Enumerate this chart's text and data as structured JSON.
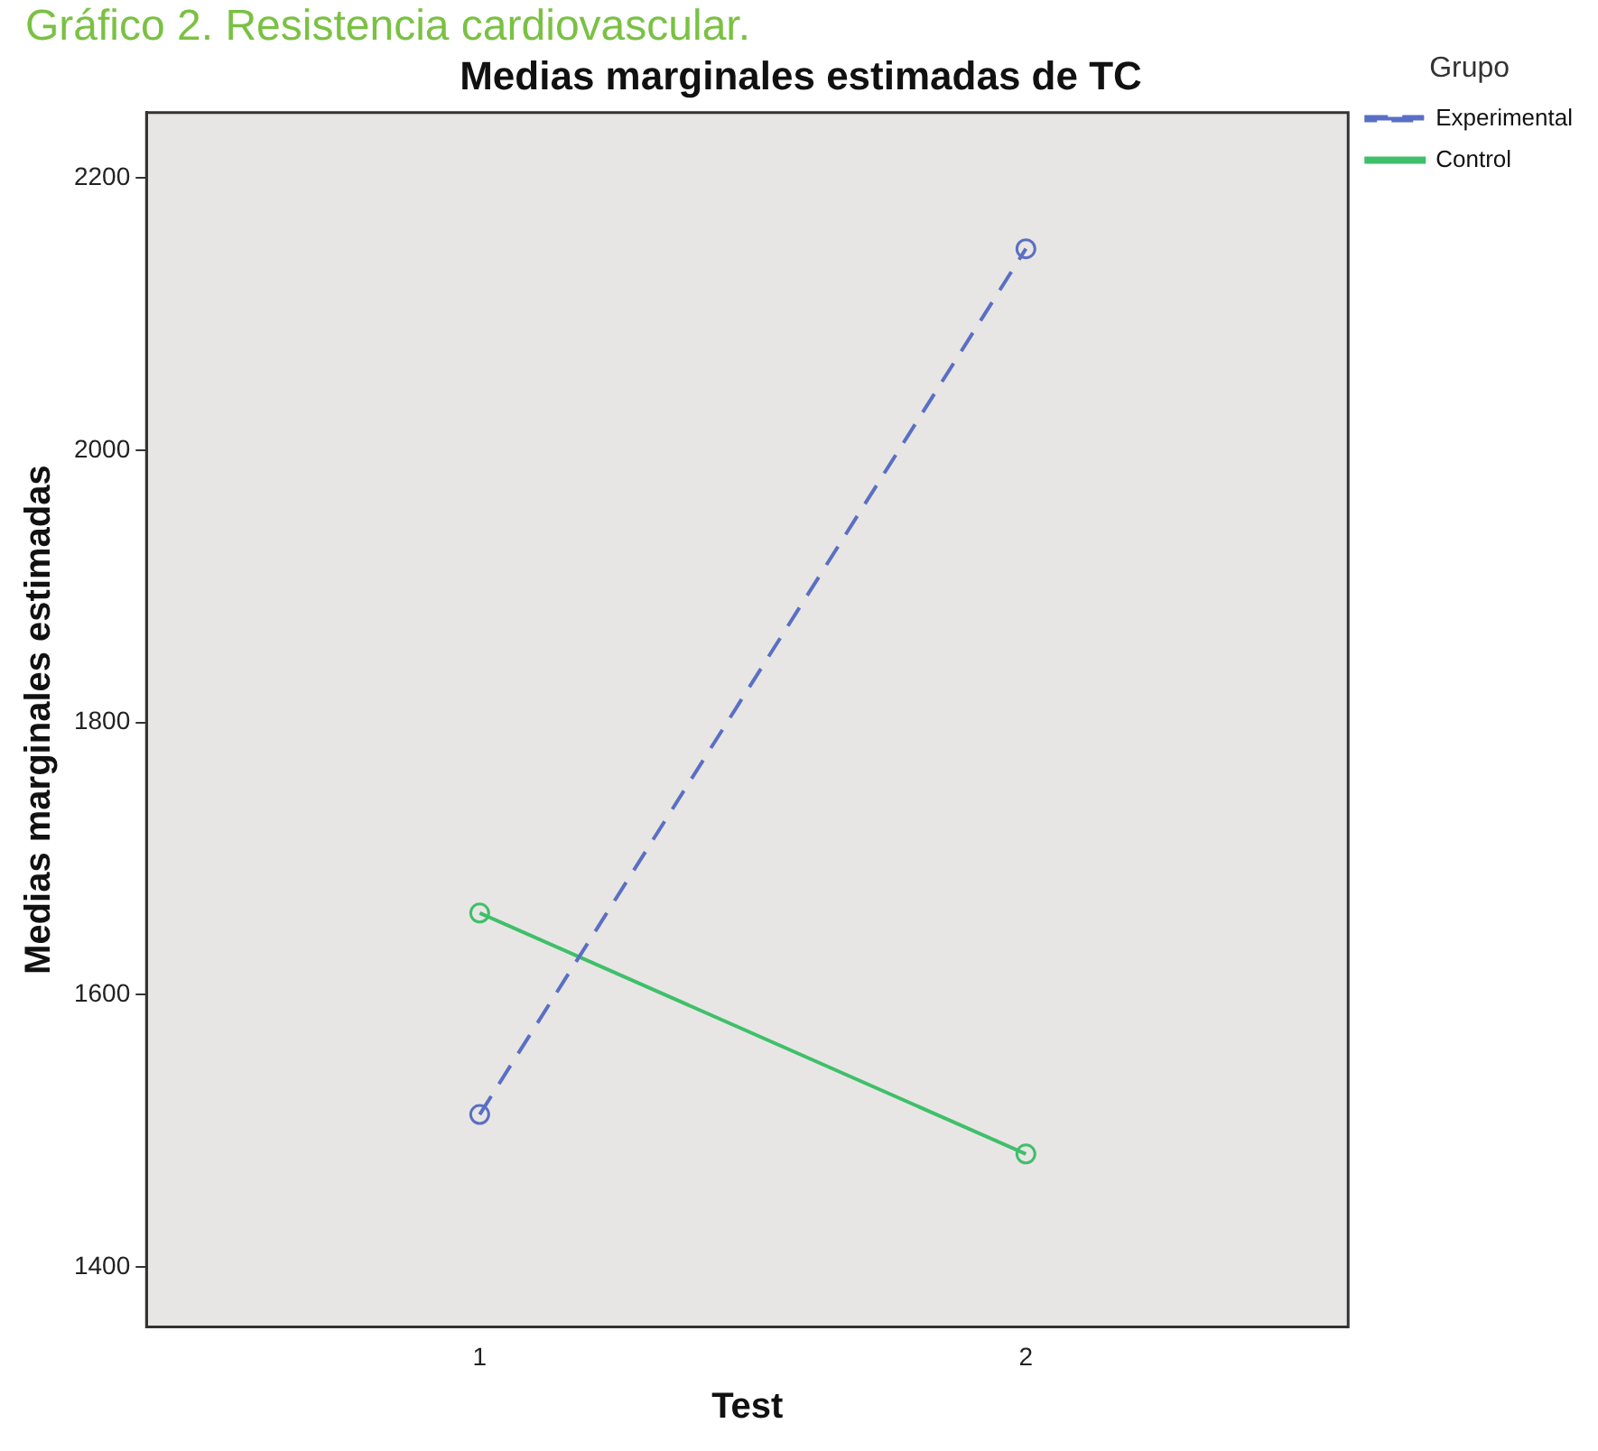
{
  "chart_data": {
    "type": "line",
    "title": "Medias marginales estimadas de TC",
    "xlabel": "Test",
    "ylabel": "Medias marginales estimadas",
    "legend_title": "Grupo",
    "annotations": [
      "Gráfico 2. Resistencia cardiovascular."
    ],
    "x": [
      1,
      2
    ],
    "xlim": [
      0.39,
      2.59
    ],
    "xticks": [
      1,
      2
    ],
    "ylim": [
      1356,
      2248
    ],
    "yticks": [
      1400,
      1600,
      1800,
      2000,
      2200
    ],
    "series": [
      {
        "name": "Experimental",
        "color": "#5a6fc4",
        "values": [
          1512,
          2148
        ],
        "line_style": "dashed"
      },
      {
        "name": "Control",
        "color": "#3fbf6a",
        "values": [
          1660,
          1483
        ],
        "line_style": "solid"
      }
    ],
    "marker": "circle",
    "grid": false,
    "legend": "top right"
  }
}
